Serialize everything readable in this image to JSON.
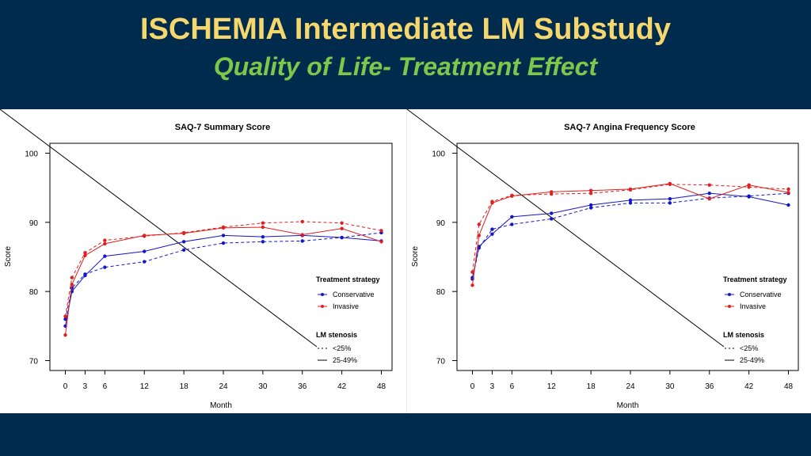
{
  "title": "ISCHEMIA Intermediate LM Substudy",
  "subtitle": "Quality of Life- Treatment Effect",
  "colors": {
    "background": "#002b4d",
    "title": "#f5d76e",
    "subtitle": "#7cc84a",
    "conservative": "#1515c8",
    "invasive": "#e02020"
  },
  "chart_data": [
    {
      "type": "line",
      "title": "SAQ-7 Summary Score",
      "xlabel": "Month",
      "ylabel": "Score",
      "xticks": [
        0,
        3,
        6,
        12,
        18,
        24,
        30,
        36,
        42,
        48
      ],
      "yticks": [
        70,
        80,
        90,
        100
      ],
      "xlim": [
        0,
        48
      ],
      "ylim": [
        70,
        100
      ],
      "grid": false,
      "legend": {
        "treatment_title": "Treatment strategy",
        "conservative_label": "Conservative",
        "invasive_label": "Invasive",
        "stenosis_title": "LM stenosis",
        "lt25_label": "<25%",
        "range_label": "25-49%",
        "placement": "bottom-right"
      },
      "series": [
        {
          "name": "Conservative",
          "stenosis": "<25%",
          "dashed": true,
          "x": [
            0,
            1,
            3,
            6,
            12,
            18,
            24,
            30,
            36,
            42,
            48
          ],
          "y": [
            76.0,
            80.5,
            82.5,
            83.5,
            84.3,
            86.0,
            87.0,
            87.2,
            87.3,
            87.8,
            88.5
          ]
        },
        {
          "name": "Conservative",
          "stenosis": "25-49%",
          "dashed": false,
          "x": [
            0,
            1,
            3,
            6,
            12,
            18,
            24,
            30,
            36,
            42,
            48
          ],
          "y": [
            75.0,
            80.0,
            82.3,
            85.1,
            85.8,
            87.2,
            88.1,
            87.9,
            88.1,
            87.8,
            87.3
          ]
        },
        {
          "name": "Invasive",
          "stenosis": "<25%",
          "dashed": true,
          "x": [
            0,
            1,
            3,
            6,
            12,
            18,
            24,
            30,
            36,
            42,
            48
          ],
          "y": [
            76.4,
            82.0,
            85.6,
            87.4,
            88.0,
            88.5,
            89.3,
            89.9,
            90.1,
            89.9,
            88.8
          ]
        },
        {
          "name": "Invasive",
          "stenosis": "25-49%",
          "dashed": false,
          "x": [
            0,
            1,
            3,
            6,
            12,
            18,
            24,
            30,
            36,
            42,
            48
          ],
          "y": [
            73.7,
            81.0,
            85.2,
            86.9,
            88.1,
            88.4,
            89.2,
            89.3,
            88.2,
            89.1,
            87.2
          ]
        }
      ]
    },
    {
      "type": "line",
      "title": "SAQ-7 Angina Frequency Score",
      "xlabel": "Month",
      "ylabel": "Score",
      "xticks": [
        0,
        3,
        6,
        12,
        18,
        24,
        30,
        36,
        42,
        48
      ],
      "yticks": [
        70,
        80,
        90,
        100
      ],
      "xlim": [
        0,
        48
      ],
      "ylim": [
        70,
        100
      ],
      "grid": false,
      "legend": {
        "treatment_title": "Treatment strategy",
        "conservative_label": "Conservative",
        "invasive_label": "Invasive",
        "stenosis_title": "LM stenosis",
        "lt25_label": "<25%",
        "range_label": "25-49%",
        "placement": "bottom-right"
      },
      "series": [
        {
          "name": "Conservative",
          "stenosis": "<25%",
          "dashed": true,
          "x": [
            0,
            1,
            3,
            6,
            12,
            18,
            24,
            30,
            36,
            42,
            48
          ],
          "y": [
            81.8,
            86.3,
            89.0,
            89.7,
            90.5,
            92.1,
            92.8,
            92.8,
            93.5,
            93.8,
            94.2
          ]
        },
        {
          "name": "Conservative",
          "stenosis": "25-49%",
          "dashed": false,
          "x": [
            0,
            1,
            3,
            6,
            12,
            18,
            24,
            30,
            36,
            42,
            48
          ],
          "y": [
            82.0,
            86.5,
            88.3,
            90.8,
            91.3,
            92.5,
            93.2,
            93.4,
            94.2,
            93.7,
            92.5
          ]
        },
        {
          "name": "Invasive",
          "stenosis": "<25%",
          "dashed": true,
          "x": [
            0,
            1,
            3,
            6,
            12,
            18,
            24,
            30,
            36,
            42,
            48
          ],
          "y": [
            82.8,
            89.7,
            93.0,
            93.9,
            94.1,
            94.2,
            94.7,
            95.5,
            95.4,
            95.1,
            94.8
          ]
        },
        {
          "name": "Invasive",
          "stenosis": "25-49%",
          "dashed": false,
          "x": [
            0,
            1,
            3,
            6,
            12,
            18,
            24,
            30,
            36,
            42,
            48
          ],
          "y": [
            80.9,
            88.1,
            92.8,
            93.8,
            94.4,
            94.6,
            94.8,
            95.6,
            93.4,
            95.4,
            94.3
          ]
        }
      ]
    }
  ]
}
